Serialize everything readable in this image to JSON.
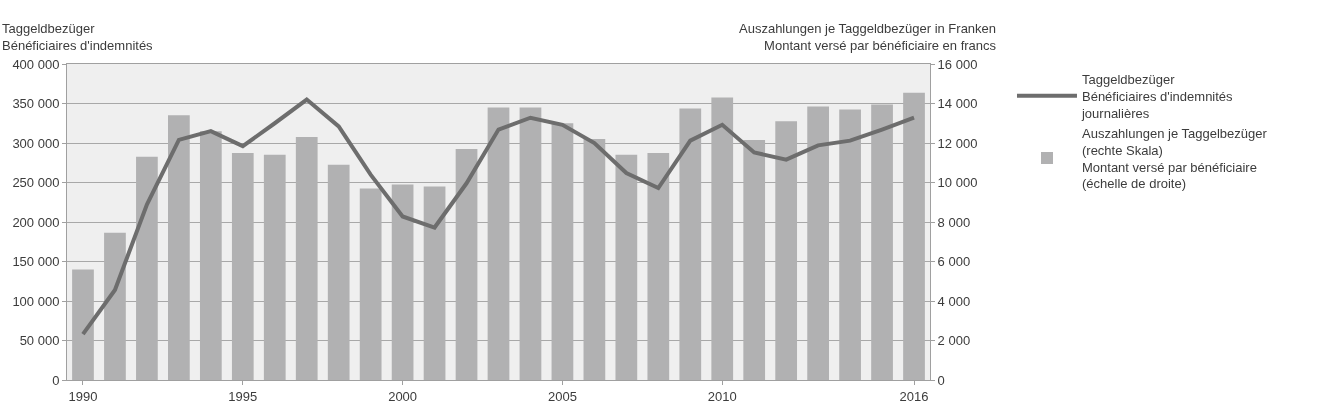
{
  "chart_data": {
    "type": "bar",
    "ylabel": "Taggeldbezüger\nBénéficiaires d'indemnités",
    "y2label": "Auszahlungen je Taggeldbezüger in Franken\nMontant versé par bénéficiaire en francs",
    "x": [
      1990,
      1991,
      1992,
      1993,
      1994,
      1995,
      1996,
      1997,
      1998,
      1999,
      2000,
      2001,
      2002,
      2003,
      2004,
      2005,
      2006,
      2007,
      2008,
      2009,
      2010,
      2011,
      2012,
      2013,
      2014,
      2015,
      2016
    ],
    "series": [
      {
        "type": "line",
        "name": "Taggeldbezüger\nBénéficiaires d'indemnités\njournalières",
        "color": "#6d6d6d",
        "values": [
          58000,
          114000,
          222000,
          304000,
          315000,
          296000,
          325000,
          355000,
          321000,
          260000,
          207000,
          193000,
          249000,
          317000,
          332000,
          323000,
          300000,
          262000,
          243000,
          303000,
          323000,
          288000,
          279000,
          297000,
          303000,
          317000,
          332000
        ]
      },
      {
        "axis": "y2",
        "name": "Auszahlungen je Taggelbezüger\n(rechte Skala)\nMontant versé par bénéficiaire\n(échelle de droite)",
        "color": "#b1b1b2",
        "values": [
          5600,
          7450,
          11300,
          13400,
          12600,
          11500,
          11400,
          12300,
          10900,
          9700,
          9900,
          9800,
          11700,
          13800,
          13800,
          13000,
          12200,
          11400,
          11500,
          13750,
          14300,
          12150,
          13100,
          13850,
          13700,
          13950,
          14550
        ]
      }
    ],
    "xlim": [
      1989.5,
      2016.5
    ],
    "xticks": [
      1990,
      1995,
      2000,
      2005,
      2010,
      2016
    ],
    "ylim": [
      0,
      400000
    ],
    "yticks": [
      {
        "value": 0,
        "label": "0"
      },
      {
        "value": 50000,
        "label": "50 000"
      },
      {
        "value": 100000,
        "label": "100 000"
      },
      {
        "value": 150000,
        "label": "150 000"
      },
      {
        "value": 200000,
        "label": "200 000"
      },
      {
        "value": 250000,
        "label": "250 000"
      },
      {
        "value": 300000,
        "label": "300 000"
      },
      {
        "value": 350000,
        "label": "350 000"
      },
      {
        "value": 400000,
        "label": "400 000"
      }
    ],
    "y2lim": [
      0,
      16000
    ],
    "y2ticks": [
      {
        "value": 0,
        "label": "0"
      },
      {
        "value": 2000,
        "label": "2 000"
      },
      {
        "value": 4000,
        "label": "4 000"
      },
      {
        "value": 6000,
        "label": "6 000"
      },
      {
        "value": 8000,
        "label": "8 000"
      },
      {
        "value": 10000,
        "label": "10 000"
      },
      {
        "value": 12000,
        "label": "12 000"
      },
      {
        "value": 14000,
        "label": "14 000"
      },
      {
        "value": 16000,
        "label": "16 000"
      }
    ],
    "grid": "y",
    "legend": "top right",
    "marker": "none",
    "line_style": "solid"
  }
}
